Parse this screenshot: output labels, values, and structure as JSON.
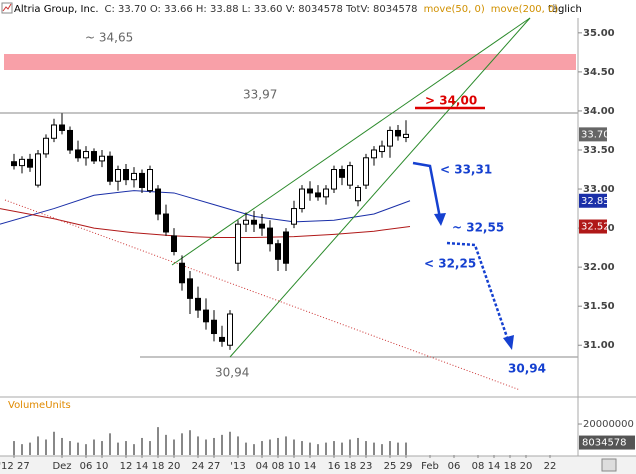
{
  "chart_data": {
    "type": "candlestick",
    "title": "Altria Group, Inc.",
    "subtitle": "C: 33.70  O: 33.66  H: 33.88  L: 33.60  V: 8034578  TotV: 8034578",
    "interval": "täglich",
    "xlim": [
      -1.75,
      70.5
    ],
    "xticks": [
      {
        "value": 0,
        "label": "'12 27"
      },
      {
        "value": 6,
        "label": "Dez"
      },
      {
        "value": 9,
        "label": "06"
      },
      {
        "value": 11,
        "label": "10"
      },
      {
        "value": 14,
        "label": "12"
      },
      {
        "value": 16,
        "label": "14"
      },
      {
        "value": 18,
        "label": "18"
      },
      {
        "value": 20,
        "label": "20"
      },
      {
        "value": 23,
        "label": "24"
      },
      {
        "value": 25,
        "label": "27"
      },
      {
        "value": 28,
        "label": "'13"
      },
      {
        "value": 31,
        "label": "04"
      },
      {
        "value": 33,
        "label": "08"
      },
      {
        "value": 35,
        "label": "10"
      },
      {
        "value": 37,
        "label": "14"
      },
      {
        "value": 40,
        "label": "16"
      },
      {
        "value": 42,
        "label": "18"
      },
      {
        "value": 44,
        "label": "23"
      },
      {
        "value": 47,
        "label": "25"
      },
      {
        "value": 49,
        "label": "29"
      },
      {
        "value": 52,
        "label": "Feb"
      },
      {
        "value": 55,
        "label": "06"
      },
      {
        "value": 58,
        "label": "08"
      },
      {
        "value": 60,
        "label": "14"
      },
      {
        "value": 62,
        "label": "18"
      },
      {
        "value": 64,
        "label": "20"
      },
      {
        "value": 67,
        "label": "22"
      }
    ],
    "ylim": [
      30.35,
      35.19
    ],
    "yticks": [
      {
        "value": 31,
        "label": "31.00"
      },
      {
        "value": 31.5,
        "label": "31.50"
      },
      {
        "value": 32,
        "label": "32.00"
      },
      {
        "value": 32.5,
        "label": "32.50"
      },
      {
        "value": 33,
        "label": "33.00"
      },
      {
        "value": 33.5,
        "label": "33.50"
      },
      {
        "value": 34,
        "label": "34.00"
      },
      {
        "value": 34.5,
        "label": "34.50"
      },
      {
        "value": 35,
        "label": "35.00"
      }
    ],
    "open": [
      33.35,
      33.3,
      33.38,
      33.05,
      33.45,
      33.65,
      33.82,
      33.75,
      33.5,
      33.4,
      33.48,
      33.36,
      33.42,
      33.1,
      33.25,
      33.12,
      33.2,
      32.98,
      33.0,
      32.68,
      32.4,
      32.05,
      31.85,
      31.6,
      31.45,
      31.32,
      31.1,
      31.0,
      32.05,
      32.55,
      32.6,
      32.55,
      32.5,
      32.3,
      32.45,
      32.55,
      32.75,
      33.0,
      32.95,
      32.9,
      33.0,
      33.25,
      33.05,
      32.85,
      33.05,
      33.4,
      33.48,
      33.55,
      33.75,
      33.66
    ],
    "high": [
      33.45,
      33.42,
      33.45,
      33.5,
      33.7,
      33.9,
      33.97,
      33.8,
      33.62,
      33.55,
      33.52,
      33.5,
      33.48,
      33.3,
      33.32,
      33.28,
      33.25,
      33.3,
      33.05,
      32.8,
      32.5,
      32.15,
      31.95,
      31.75,
      31.6,
      31.45,
      31.25,
      31.45,
      32.6,
      32.7,
      32.72,
      32.68,
      32.6,
      32.35,
      32.5,
      32.85,
      33.05,
      33.1,
      33.05,
      33.05,
      33.3,
      33.3,
      33.35,
      33.05,
      33.45,
      33.55,
      33.62,
      33.8,
      33.82,
      33.88
    ],
    "low": [
      33.25,
      33.2,
      33.22,
      33.02,
      33.4,
      33.6,
      33.7,
      33.45,
      33.35,
      33.3,
      33.32,
      33.28,
      33.05,
      32.98,
      33.05,
      33.02,
      32.95,
      32.95,
      32.6,
      32.4,
      32.15,
      31.7,
      31.4,
      31.35,
      31.2,
      31.05,
      30.98,
      30.94,
      31.95,
      32.45,
      32.45,
      32.4,
      32.2,
      31.95,
      31.95,
      32.5,
      32.7,
      32.85,
      32.85,
      32.8,
      32.95,
      33.05,
      33.0,
      32.78,
      33.0,
      33.3,
      33.4,
      33.4,
      33.62,
      33.6
    ],
    "close": [
      33.3,
      33.38,
      33.28,
      33.45,
      33.65,
      33.82,
      33.75,
      33.5,
      33.4,
      33.48,
      33.36,
      33.42,
      33.1,
      33.25,
      33.12,
      33.2,
      33.02,
      33.25,
      32.68,
      32.45,
      32.2,
      31.8,
      31.6,
      31.45,
      31.3,
      31.15,
      31.05,
      31.4,
      32.55,
      32.6,
      32.55,
      32.5,
      32.3,
      32.1,
      32.05,
      32.75,
      33.0,
      32.95,
      32.9,
      33.0,
      33.25,
      33.15,
      33.3,
      33.02,
      33.4,
      33.5,
      33.55,
      33.75,
      33.68,
      33.7
    ],
    "close_label": "33.70",
    "series": [
      {
        "name": "move(50, 0)",
        "color": "#1a2fa8",
        "x": [
          -1.75,
          5,
          10,
          15,
          20,
          25,
          30,
          35,
          40,
          45,
          49.5
        ],
        "values": [
          32.55,
          32.75,
          32.92,
          32.98,
          32.95,
          32.8,
          32.65,
          32.58,
          32.6,
          32.68,
          32.85
        ],
        "last_label": "32.85"
      },
      {
        "name": "move(200, 0)",
        "color": "#b01818",
        "x": [
          -1.75,
          5,
          10,
          15,
          20,
          25,
          30,
          35,
          40,
          45,
          49.5
        ],
        "values": [
          32.75,
          32.62,
          32.5,
          32.44,
          32.4,
          32.38,
          32.38,
          32.39,
          32.42,
          32.46,
          32.52
        ],
        "last_label": "32.52"
      }
    ],
    "annotations": [
      "~ 34,65",
      "33,97",
      "> 34,00",
      "< 33,31",
      "~ 32,55",
      "< 32,25",
      "30,94",
      "30,94"
    ],
    "volume": {
      "title": "VolumeUnits",
      "color": "#888888",
      "values": [
        9000000,
        7000000,
        8000000,
        12000000,
        10000000,
        15000000,
        11000000,
        9000000,
        8000000,
        7000000,
        10000000,
        9000000,
        14000000,
        8000000,
        9000000,
        7000000,
        11000000,
        9000000,
        18000000,
        13000000,
        10000000,
        14000000,
        16000000,
        12000000,
        10000000,
        11000000,
        13000000,
        15000000,
        12000000,
        8000000,
        7000000,
        9000000,
        10000000,
        11000000,
        12000000,
        10000000,
        9000000,
        8000000,
        7000000,
        8000000,
        9000000,
        8000000,
        10000000,
        11000000,
        9000000,
        8000000,
        7000000,
        9000000,
        8000000,
        8034578
      ],
      "ylim": [
        0,
        36800000
      ],
      "yticks": [
        20000000
      ]
    }
  }
}
